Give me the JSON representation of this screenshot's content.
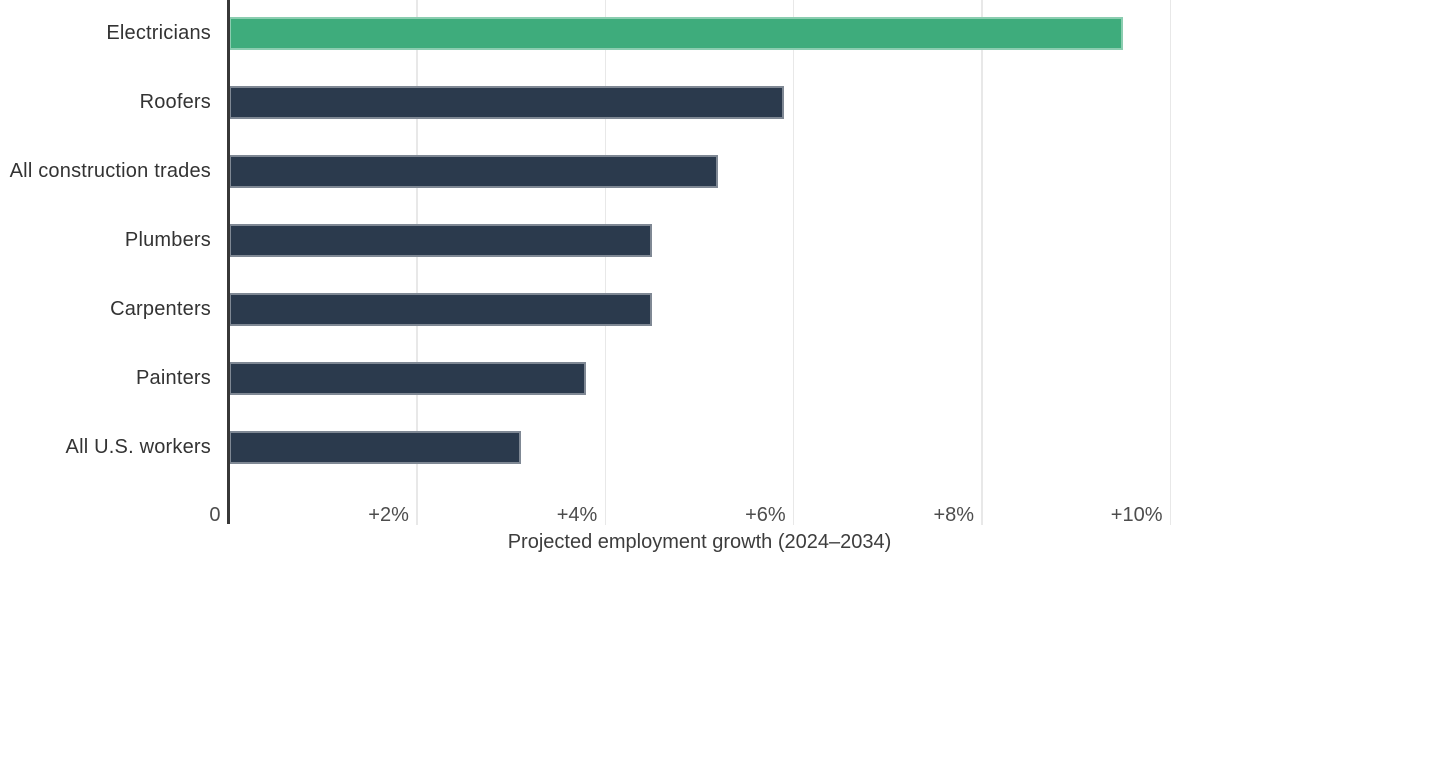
{
  "chart_data": {
    "type": "bar",
    "orientation": "horizontal",
    "xlabel": "Projected employment growth (2024–2034)",
    "categories": [
      "Electricians",
      "Roofers",
      "All construction trades",
      "Plumbers",
      "Carpenters",
      "Painters",
      "All U.S. workers"
    ],
    "values": [
      9.5,
      5.9,
      5.2,
      4.5,
      4.5,
      3.8,
      3.1
    ],
    "value_unit": "percent",
    "highlight_index": 0,
    "xlim": [
      0,
      10
    ],
    "x_ticks": [
      {
        "value": 0,
        "label": "0"
      },
      {
        "value": 2,
        "label": "+2%"
      },
      {
        "value": 4,
        "label": "+4%"
      },
      {
        "value": 6,
        "label": "+6%"
      },
      {
        "value": 8,
        "label": "+8%"
      },
      {
        "value": 10,
        "label": "+10%"
      }
    ],
    "grid": "vertical",
    "legend": "none",
    "colors": {
      "bar": "#2b3a4d",
      "highlight": "#3eac7c",
      "gridline": "#e8e8e8",
      "axis_line": "#383838",
      "category_label": "#333333",
      "tick_label": "#4d4d4d",
      "axis_title": "#3d3d3d",
      "background": "#ffffff"
    }
  }
}
